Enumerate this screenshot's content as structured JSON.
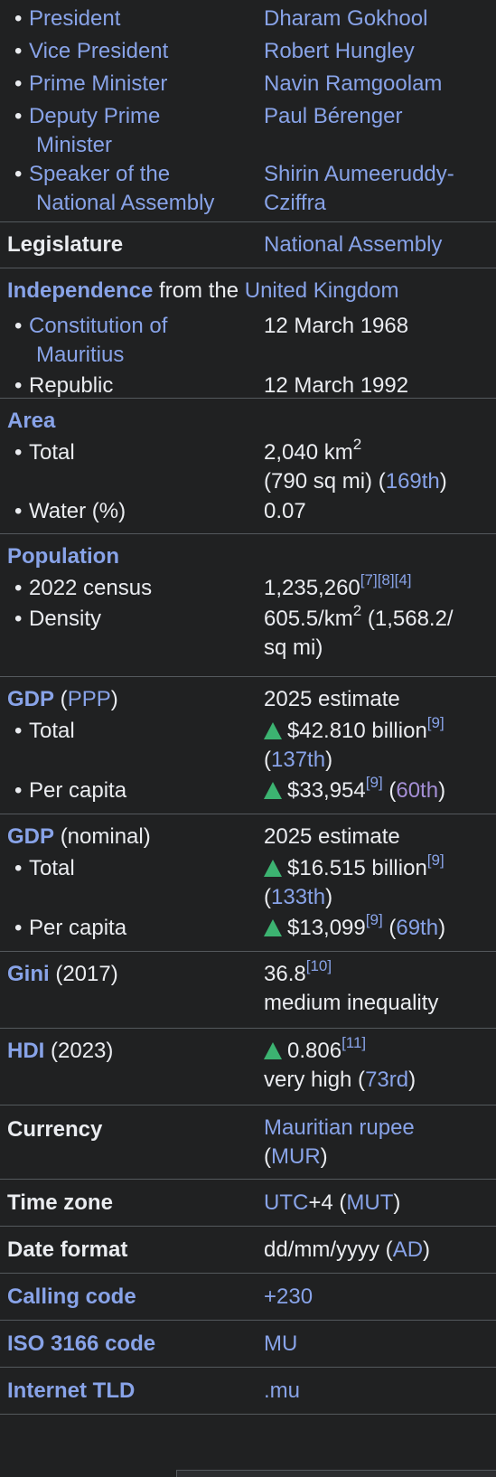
{
  "leaders": [
    {
      "label": "President",
      "value": "Dharam Gokhool"
    },
    {
      "label": "Vice President",
      "value": "Robert Hungley"
    },
    {
      "label": "Prime Minister",
      "value": "Navin Ramgoolam"
    },
    {
      "label_line1": "Deputy Prime",
      "label_line2": "Minister",
      "value": "Paul Bérenger"
    },
    {
      "label_line1": "Speaker of the",
      "label_line2": "National Assembly",
      "value_line1": "Shirin Aumeeruddy-",
      "value_line2": "Cziffra"
    }
  ],
  "legislature": {
    "label": "Legislature",
    "value": "National Assembly"
  },
  "independence": {
    "title": "Independence",
    "from_text": "from the",
    "country": "United Kingdom",
    "events": [
      {
        "label_line1": "Constitution of",
        "label_line2": "Mauritius",
        "date": "12 March 1968"
      },
      {
        "label": "Republic",
        "date": "12 March 1992"
      }
    ]
  },
  "area": {
    "title": "Area",
    "total": {
      "label": "Total",
      "value_km": "2,040 km",
      "sup": "2",
      "value_sqmi": "(790 sq mi)",
      "rank": "169th"
    },
    "water": {
      "label": "Water (%)",
      "value": "0.07"
    }
  },
  "population": {
    "title": "Population",
    "census": {
      "label": "2022 census",
      "value": "1,235,260",
      "refs": [
        "[7]",
        "[8]",
        "[4]"
      ]
    },
    "density": {
      "label": "Density",
      "value_km": "605.5/km",
      "sup": "2",
      "value_sqmi_line1": "(1,568.2/",
      "value_sqmi_line2": "sq mi)"
    }
  },
  "gdp_ppp": {
    "title": "GDP",
    "qualifier": "PPP",
    "estimate": "2025 estimate",
    "total": {
      "label": "Total",
      "value": "$42.810 billion",
      "ref": "[9]",
      "rank": "137th"
    },
    "per_capita": {
      "label": "Per capita",
      "value": "$33,954",
      "ref": "[9]",
      "rank": "60th"
    }
  },
  "gdp_nominal": {
    "title": "GDP",
    "qualifier": "(nominal)",
    "estimate": "2025 estimate",
    "total": {
      "label": "Total",
      "value": "$16.515 billion",
      "ref": "[9]",
      "rank": "133th"
    },
    "per_capita": {
      "label": "Per capita",
      "value": "$13,099",
      "ref": "[9]",
      "rank": "69th"
    }
  },
  "gini": {
    "title": "Gini",
    "year": "(2017)",
    "value": "36.8",
    "ref": "[10]",
    "description": "medium inequality"
  },
  "hdi": {
    "title": "HDI",
    "year": "(2023)",
    "value": "0.806",
    "ref": "[11]",
    "description": "very high",
    "rank": "73rd"
  },
  "currency": {
    "label": "Currency",
    "value": "Mauritian rupee",
    "code": "MUR"
  },
  "time_zone": {
    "label": "Time zone",
    "utc": "UTC",
    "offset": "+4",
    "abbr": "MUT"
  },
  "date_format": {
    "label": "Date format",
    "value": "dd/mm/yyyy",
    "era": "AD"
  },
  "calling_code": {
    "label": "Calling code",
    "value": "+230"
  },
  "iso_code": {
    "label": "ISO 3166 code",
    "value": "MU"
  },
  "internet_tld": {
    "label": "Internet TLD",
    "value": ".mu"
  },
  "colors": {
    "background": "#202122",
    "text": "#eaecf0",
    "link": "#88a3e8",
    "visited_link": "#a58fd6",
    "increase_arrow": "#3cb371",
    "border": "#54595d"
  },
  "icons": {
    "increase": "increase-arrow-icon"
  }
}
